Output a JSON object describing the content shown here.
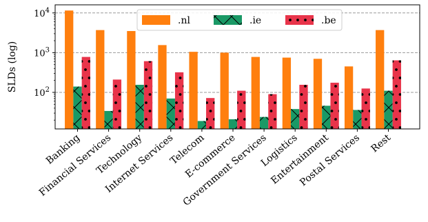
{
  "chart_data": {
    "type": "bar",
    "ylabel": "SLDs (log)",
    "yscale": "log",
    "ylim": [
      12,
      16000
    ],
    "yticks": [
      {
        "value": 100,
        "base": "10",
        "exp": "2"
      },
      {
        "value": 1000,
        "base": "10",
        "exp": "3"
      },
      {
        "value": 10000,
        "base": "10",
        "exp": "4"
      }
    ],
    "grid": "y-major-dashed",
    "legend_position": "top-center",
    "categories": [
      "Banking",
      "Financial Services",
      "Technology",
      "Internet Services",
      "Telecom",
      "E-commerce",
      "Government Services",
      "Logistics",
      "Entertainment",
      "Postal Services",
      "Rest"
    ],
    "series": [
      {
        "name": ".nl",
        "color": "#ff7f0e",
        "hatch": "none",
        "values": [
          11500,
          3700,
          3500,
          1550,
          1050,
          1000,
          780,
          750,
          700,
          450,
          3700
        ]
      },
      {
        "name": ".ie",
        "color": "#1a9966",
        "hatch": "cross",
        "values": [
          140,
          34,
          155,
          70,
          19,
          21,
          24,
          38,
          46,
          36,
          110
        ]
      },
      {
        "name": ".be",
        "color": "#e8344a",
        "hatch": "dots",
        "values": [
          780,
          210,
          610,
          320,
          72,
          110,
          90,
          155,
          175,
          125,
          640
        ]
      }
    ]
  }
}
